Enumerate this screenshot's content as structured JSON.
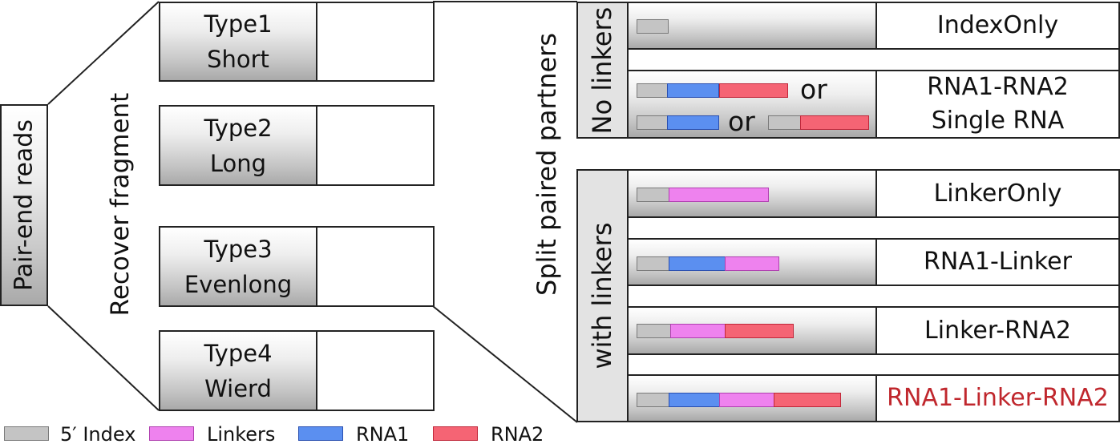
{
  "root": {
    "label": "Pair-end reads"
  },
  "stage1": {
    "label": "Recover fragment"
  },
  "stage2": {
    "label": "Split paired partners"
  },
  "fragment_types": [
    {
      "line1": "Type1",
      "line2": "Short"
    },
    {
      "line1": "Type2",
      "line2": "Long"
    },
    {
      "line1": "Type3",
      "line2": "Evenlong"
    },
    {
      "line1": "Type4",
      "line2": "Wierd"
    }
  ],
  "groups": {
    "no_linkers": {
      "label": "No linkers"
    },
    "with_linkers": {
      "label": "with linkers"
    }
  },
  "results": [
    {
      "lines": [
        "IndexOnly"
      ],
      "color": "#111111"
    },
    {
      "lines": [
        "RNA1-RNA2",
        "Single RNA"
      ],
      "color": "#111111"
    },
    {
      "lines": [
        "LinkerOnly"
      ],
      "color": "#111111"
    },
    {
      "lines": [
        "RNA1-Linker"
      ],
      "color": "#111111"
    },
    {
      "lines": [
        "Linker-RNA2"
      ],
      "color": "#111111"
    },
    {
      "lines": [
        "RNA1-Linker-RNA2"
      ],
      "color": "#c0272d"
    }
  ],
  "or_word": "or",
  "legend": [
    {
      "key": "index",
      "label": "5′ Index",
      "color": "#c4c4c4",
      "border": "#7a7a7a"
    },
    {
      "key": "linker",
      "label": "Linkers",
      "color": "#ee82ee",
      "border": "#b040b0"
    },
    {
      "key": "rna1",
      "label": "RNA1",
      "color": "#5b8ff0",
      "border": "#2a4fb0"
    },
    {
      "key": "rna2",
      "label": "RNA2",
      "color": "#f56474",
      "border": "#c0273a"
    }
  ]
}
